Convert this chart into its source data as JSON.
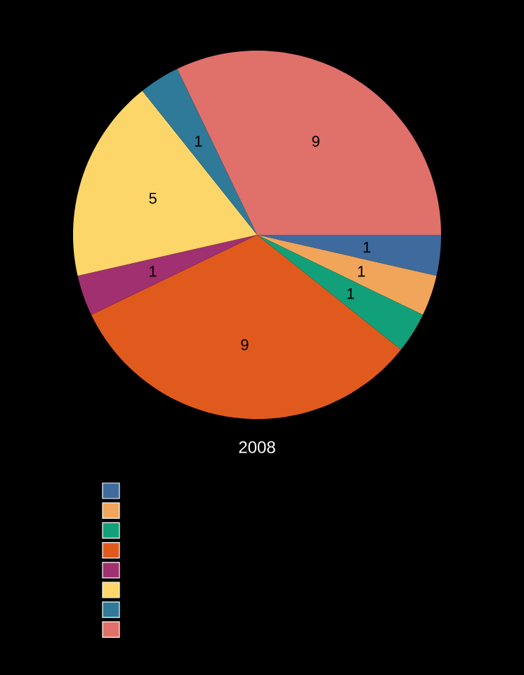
{
  "chart_data": {
    "type": "pie",
    "title": "2008",
    "categories": [
      null,
      null,
      null,
      null,
      null,
      null,
      null,
      null
    ],
    "values": [
      1,
      1,
      1,
      9,
      1,
      5,
      1,
      9
    ],
    "colors": [
      "#3f6a9e",
      "#f0a55a",
      "#12a07a",
      "#e05a1e",
      "#a03070",
      "#fdd66a",
      "#2e7a98",
      "#e0706a"
    ],
    "data_labels": true
  }
}
